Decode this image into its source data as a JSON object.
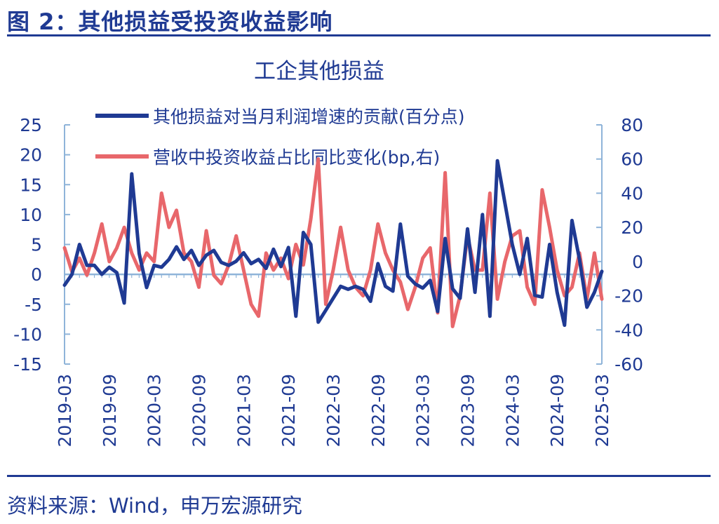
{
  "header": "图 2：其他损益受投资收益影响",
  "source": "资料来源：Wind，申万宏源研究",
  "colors": {
    "navy": "#1f3a93",
    "salmon": "#e8676b",
    "axis": "#8fb4d9",
    "text": "#1f3a93"
  },
  "chart_data": {
    "type": "line",
    "title": "工企其他损益",
    "legend_position": "top-center",
    "grid": false,
    "xlabel": "",
    "ylabel": "",
    "y_left": {
      "min": -15,
      "max": 25,
      "ticks": [
        25,
        20,
        15,
        10,
        5,
        0,
        -5,
        -10,
        -15
      ]
    },
    "y_right": {
      "min": -60,
      "max": 80,
      "ticks": [
        80,
        60,
        40,
        20,
        0,
        -20,
        -40,
        -60
      ]
    },
    "x_tick_labels": [
      "2019-03",
      "2019-09",
      "2020-03",
      "2020-09",
      "2021-03",
      "2021-09",
      "2022-03",
      "2022-09",
      "2023-03",
      "2023-09",
      "2024-03",
      "2024-09",
      "2025-03"
    ],
    "x_months": [
      "2019-03",
      "2019-04",
      "2019-05",
      "2019-06",
      "2019-07",
      "2019-08",
      "2019-09",
      "2019-10",
      "2019-11",
      "2019-12",
      "2020-01",
      "2020-02",
      "2020-03",
      "2020-04",
      "2020-05",
      "2020-06",
      "2020-07",
      "2020-08",
      "2020-09",
      "2020-10",
      "2020-11",
      "2020-12",
      "2021-01",
      "2021-02",
      "2021-03",
      "2021-04",
      "2021-05",
      "2021-06",
      "2021-07",
      "2021-08",
      "2021-09",
      "2021-10",
      "2021-11",
      "2021-12",
      "2022-01",
      "2022-02",
      "2022-03",
      "2022-04",
      "2022-05",
      "2022-06",
      "2022-07",
      "2022-08",
      "2022-09",
      "2022-10",
      "2022-11",
      "2022-12",
      "2023-01",
      "2023-02",
      "2023-03",
      "2023-04",
      "2023-05",
      "2023-06",
      "2023-07",
      "2023-08",
      "2023-09",
      "2023-10",
      "2023-11",
      "2023-12",
      "2024-01",
      "2024-02",
      "2024-03",
      "2024-04",
      "2024-05",
      "2024-06",
      "2024-07",
      "2024-08",
      "2024-09",
      "2024-10",
      "2024-11",
      "2024-12",
      "2025-01",
      "2025-02",
      "2025-03"
    ],
    "series": [
      {
        "name": "其他损益对当月利润增速的贡献(百分点)",
        "axis": "left",
        "color": "#1f3a93",
        "values": [
          -1.8,
          0,
          5,
          1.5,
          1.5,
          0,
          1.2,
          0.3,
          -4.8,
          16.8,
          3.5,
          -2.2,
          1.5,
          1.2,
          2.5,
          4.6,
          2.5,
          4,
          1.5,
          3.2,
          4,
          2,
          1.5,
          2.2,
          3.6,
          1.8,
          2.5,
          1,
          4.2,
          1.3,
          4.5,
          -7,
          7,
          5,
          -8,
          -6,
          -4,
          -2,
          -2.5,
          -2,
          -2.5,
          -4.5,
          1.8,
          -2,
          -2.8,
          8.4,
          -0.3,
          -1.6,
          -2.3,
          -1,
          -6.2,
          6,
          -2.4,
          -4,
          7.6,
          -3,
          10,
          -7,
          19,
          12,
          5,
          0,
          6,
          -3.5,
          -3.8,
          5,
          -3,
          -8.5,
          9,
          2.5,
          -5.5,
          -3,
          0.5
        ]
      },
      {
        "name": "营收中投资收益占比同比变化(bp,右)",
        "axis": "right",
        "color": "#e8676b",
        "values": [
          8,
          -6,
          2,
          -8,
          5,
          22,
          0,
          8,
          20,
          5,
          -5,
          5,
          0,
          40,
          20,
          30,
          5,
          0,
          -15,
          18,
          -8,
          -13,
          -2,
          15,
          -5,
          -25,
          -32,
          5,
          -5,
          2,
          -10,
          10,
          -2,
          25,
          60,
          -25,
          -5,
          20,
          -5,
          -15,
          -20,
          -5,
          22,
          5,
          -5,
          -12,
          -28,
          -15,
          2,
          8,
          -30,
          52,
          -38,
          -20,
          15,
          -5,
          -5,
          40,
          -22,
          0,
          15,
          18,
          -15,
          -25,
          42,
          20,
          -5,
          -20,
          -15,
          5,
          -22,
          5,
          -22
        ]
      }
    ]
  }
}
